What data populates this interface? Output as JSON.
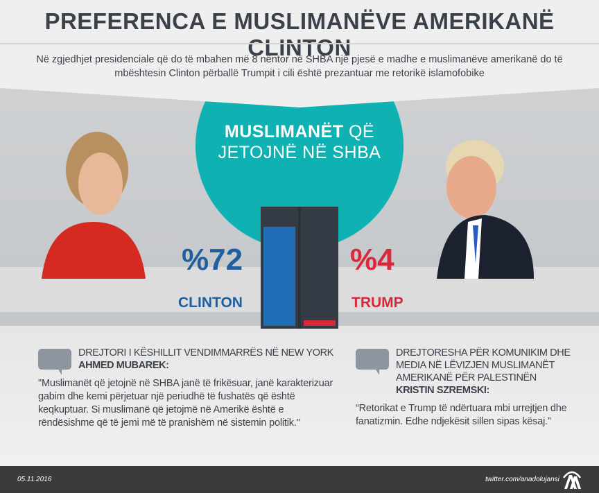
{
  "header": {
    "title": "PREFERENCA E MUSLIMANËVE AMERIKANË CLINTON",
    "subtitle": "Në zgjedhjet presidenciale që do të mbahen më 8 nëntor në SHBA një pjesë e madhe e muslimanëve amerikanë do të mbështesin Clinton përballë Trumpit i cili është prezantuar me retorikë islamofobike"
  },
  "center": {
    "title_bold": "MUSLIMANËT",
    "title_rest": " QË",
    "title_line2": "JETOJNË NË SHBA"
  },
  "results": [
    {
      "candidate": "CLINTON",
      "label": "%72",
      "percent": 72,
      "color": "#1f6db5"
    },
    {
      "candidate": "TRUMP",
      "label": "%4",
      "percent": 4,
      "color": "#d9283a"
    }
  ],
  "quotes": [
    {
      "role": "DREJTORI I KËSHILLIT VENDIMMARRËS NË NEW YORK",
      "name": "AHMED MUBAREK:",
      "text": "\"Muslimanët që jetojnë në SHBA janë të frikësuar, janë karakterizuar gabim dhe kemi përjetuar një periudhë të fushatës që është keqkuptuar. Si muslimanë që jetojmë në Amerikë është e rëndësishme që të jemi më të pranishëm në sistemin politik.\""
    },
    {
      "role": "DREJTORESHA PËR KOMUNIKIM DHE MEDIA NË LËVIZJEN MUSLIMANËT AMERIKANË PËR PALESTINËN",
      "name": "KRISTIN SZREMSKI:",
      "text": "“Retorikat e Trump të ndërtuara mbi urrejtjen dhe fanatizmin. Edhe ndjekësit sillen sipas kësaj.”"
    }
  ],
  "footer": {
    "date": "05.11.2016",
    "twitter": "twitter.com/anadolujansi",
    "logo": "AA"
  },
  "colors": {
    "teal": "#0fb1b3",
    "dark": "#343b44",
    "clinton": "#1f6db5",
    "trump": "#d9283a"
  }
}
